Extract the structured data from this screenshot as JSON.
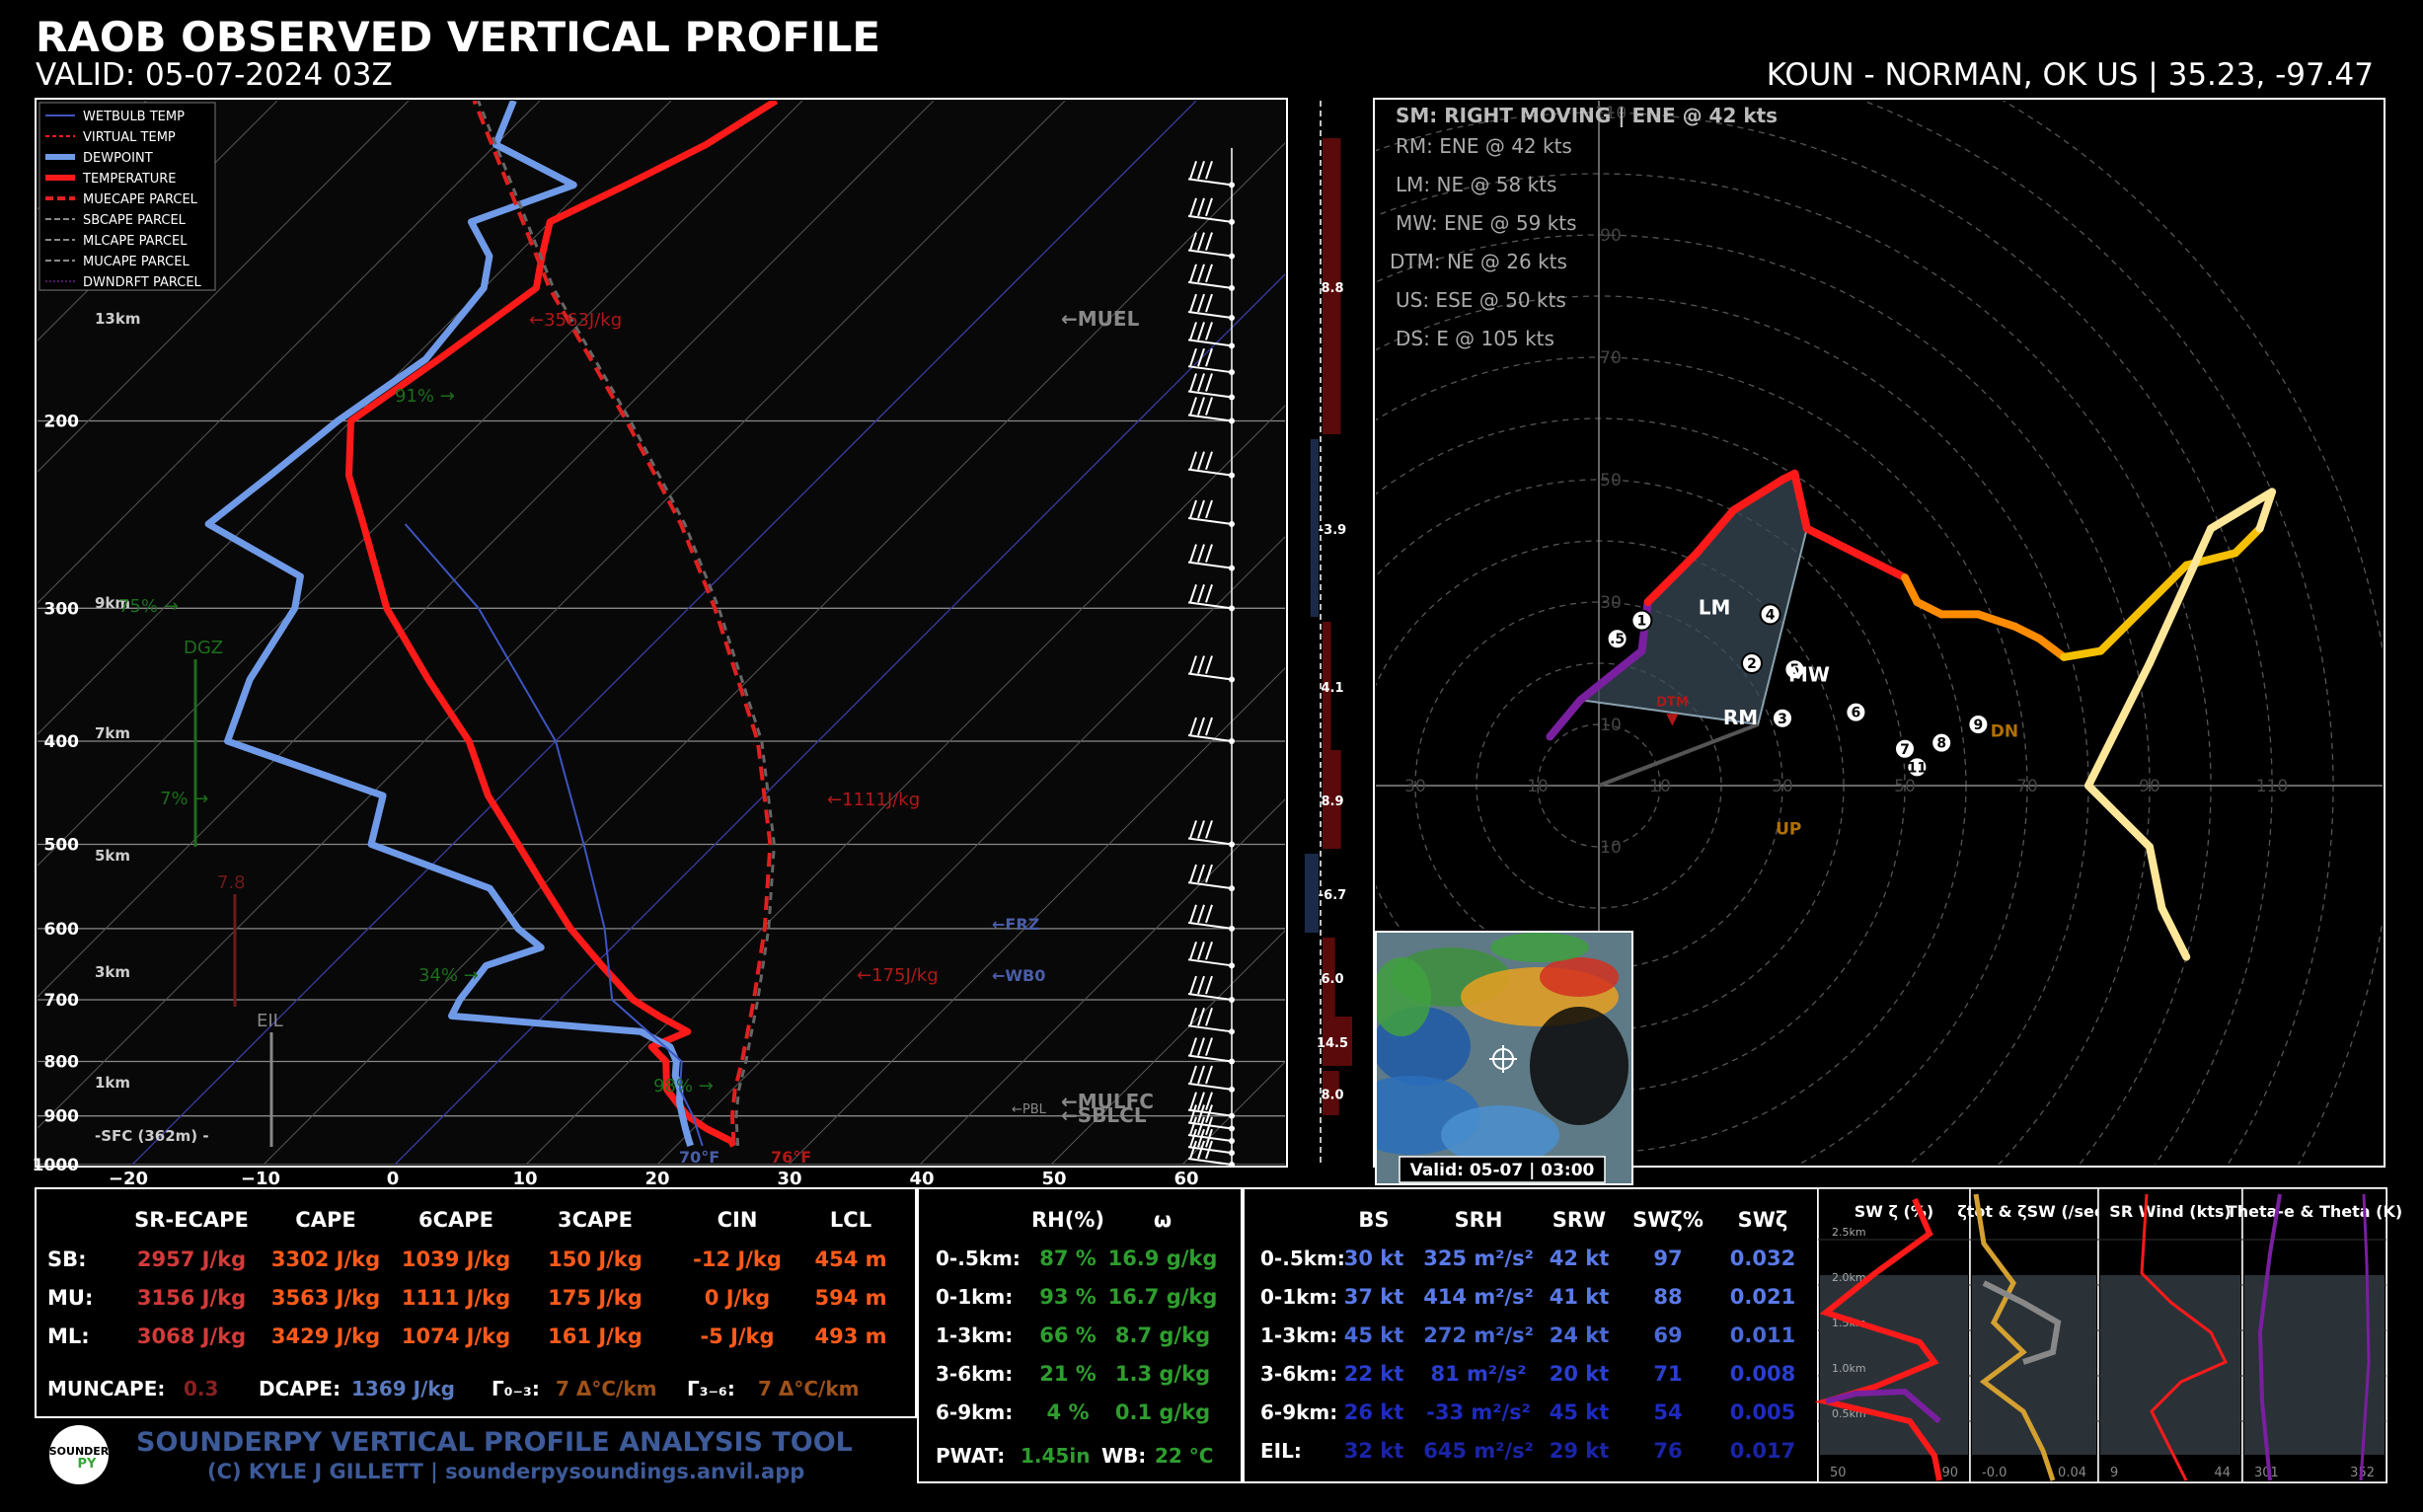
{
  "header": {
    "title": "RAOB OBSERVED VERTICAL PROFILE",
    "valid": "VALID: 05-07-2024 03Z",
    "station": "KOUN - NORMAN, OK US | 35.23, -97.47"
  },
  "skewt": {
    "legend": [
      "WETBULB TEMP",
      "VIRTUAL TEMP",
      "DEWPOINT",
      "TEMPERATURE",
      "MUECAPE PARCEL",
      "SBCAPE PARCEL",
      "MLCAPE PARCEL",
      "MUCAPE PARCEL",
      "DWNDRFT PARCEL"
    ],
    "pressure_ticks": [
      "200",
      "300",
      "400",
      "500",
      "600",
      "700",
      "800",
      "900",
      "1000"
    ],
    "temp_ticks": [
      "−20",
      "−10",
      "0",
      "10",
      "20",
      "30",
      "40",
      "50",
      "60"
    ],
    "height_labels": [
      "13km",
      "9km",
      "7km",
      "5km",
      "3km",
      "1km",
      "-SFC (362m) -"
    ],
    "annotations": {
      "muecape": "←3563J/kg",
      "six_cape": "←1111J/kg",
      "three_cape": "←175J/kg",
      "muel": "←MUEL",
      "frz": "←FRZ",
      "wb0": "←WB0",
      "mulfc": "←MULFC",
      "sblcl": "←SBLCL",
      "pbl": "←PBL",
      "rh_91": "91% →",
      "rh_75": "75% →",
      "rh_7": "7% →",
      "rh_34": "34% →",
      "rh_98": "98% →",
      "dgz": "DGZ",
      "eil": "EIL",
      "lapse": "7.8",
      "sfc_t": "76°F",
      "sfc_td": "70°F"
    },
    "shear_bars": [
      "8.8",
      "-3.9",
      "4.1",
      "8.9",
      "-6.7",
      "6.0",
      "14.5",
      "8.0"
    ]
  },
  "chart_data": {
    "type": "line",
    "title": "RAOB OBSERVED VERTICAL PROFILE",
    "xlabel": "",
    "ylabel": "",
    "xlim": [
      -20,
      60
    ],
    "ylim": [
      1000,
      100
    ],
    "log_y": true,
    "series": [
      {
        "name": "TEMPERATURE",
        "p": [
          960,
          950,
          925,
          900,
          875,
          850,
          800,
          775,
          750,
          725,
          700,
          650,
          600,
          550,
          500,
          450,
          400,
          350,
          300,
          250,
          225,
          200,
          175,
          150,
          140,
          130,
          120,
          110,
          100
        ],
        "t": [
          24.4,
          23.8,
          21.0,
          18.6,
          16.8,
          15.0,
          12.8,
          10.6,
          12.2,
          8.8,
          5.6,
          0.6,
          -4.6,
          -9.6,
          -15.0,
          -21.0,
          -26.6,
          -34.4,
          -43.0,
          -51.2,
          -56.0,
          -60.0,
          -58.0,
          -56.0,
          -58.0,
          -60.0,
          -57.0,
          -54.0,
          -52.0
        ]
      },
      {
        "name": "DEWPOINT",
        "p": [
          960,
          950,
          925,
          900,
          875,
          850,
          825,
          800,
          775,
          750,
          725,
          700,
          650,
          625,
          600,
          550,
          500,
          450,
          400,
          350,
          300,
          280,
          250,
          225,
          200,
          175,
          150,
          140,
          130,
          120,
          110,
          100
        ],
        "t": [
          21.1,
          20.6,
          19.4,
          18.2,
          17.0,
          16.0,
          14.6,
          13.6,
          12.0,
          8.6,
          -7.0,
          -7.6,
          -8.2,
          -5.4,
          -8.6,
          -13.8,
          -26.2,
          -29.0,
          -45.0,
          -48.0,
          -50.0,
          -52.0,
          -63.0,
          -62.0,
          -61.0,
          -59.0,
          -60.0,
          -62.0,
          -66.0,
          -61.0,
          -70.0,
          -72.0
        ]
      },
      {
        "name": "MUECAPE PARCEL",
        "p": [
          960,
          900,
          850,
          800,
          700,
          600,
          500,
          400,
          300,
          250,
          200,
          150,
          120,
          100
        ],
        "t": [
          24.4,
          22.0,
          20.2,
          18.6,
          14.8,
          10.2,
          4.2,
          -4.6,
          -18.0,
          -27.0,
          -39.0,
          -55.0,
          -66.0,
          -75.0
        ]
      },
      {
        "name": "WETBULB TEMP",
        "p": [
          960,
          900,
          850,
          800,
          700,
          600,
          500,
          400,
          300,
          250
        ],
        "t": [
          22.0,
          19.0,
          16.0,
          14.0,
          4.0,
          -2.0,
          -10.0,
          -20.0,
          -36.0,
          -48.0
        ]
      }
    ],
    "barbs_p": [
      1000,
      975,
      950,
      925,
      900,
      850,
      800,
      750,
      700,
      650,
      600,
      550,
      500,
      400,
      350,
      300,
      275,
      250,
      225,
      200,
      190,
      180,
      170,
      160,
      150,
      140,
      130,
      120
    ],
    "grid": true
  },
  "hodograph": {
    "storm_motion": "SM: RIGHT MOVING | ENE @ 42 kts",
    "motions": [
      "RM: ENE @ 42 kts",
      "LM: NE @ 58 kts",
      "MW: ENE @ 59 kts",
      "DTM: NE @ 26 kts",
      "US: ESE @ 50 kts",
      "DS: E @ 105 kts"
    ],
    "ring_labels_x": [
      "30",
      "10",
      "10",
      "30",
      "50",
      "70",
      "90",
      "110"
    ],
    "ring_labels_y": [
      "110",
      "90",
      "70",
      "50",
      "30",
      "10",
      "10"
    ],
    "markers": [
      "LM",
      "MW",
      "RM",
      "DTM",
      "DN",
      "UP"
    ],
    "km_labels": [
      ".5",
      "1",
      "2",
      "3",
      "4",
      "5",
      "6",
      "7",
      "8",
      "9",
      "11"
    ],
    "u_kt": [
      -8,
      -3,
      7,
      8,
      16,
      22,
      30,
      32,
      34,
      42,
      50,
      52,
      56,
      62,
      68,
      72,
      76,
      82,
      90,
      96,
      104,
      108,
      110,
      100,
      90,
      80,
      90,
      92,
      96
    ],
    "v_kt": [
      8,
      14,
      22,
      30,
      38,
      45,
      50,
      51,
      42,
      38,
      34,
      30,
      28,
      28,
      26,
      24,
      21,
      22,
      30,
      36,
      38,
      42,
      48,
      42,
      20,
      0,
      -10,
      -20,
      -28
    ],
    "radar_valid": "Valid: 05-07 | 03:00"
  },
  "table_thermo": {
    "headers": [
      "SR-ECAPE",
      "CAPE",
      "6CAPE",
      "3CAPE",
      "CIN",
      "LCL"
    ],
    "rows": [
      {
        "label": "SB:",
        "vals": [
          "2957 J/kg",
          "3302 J/kg",
          "1039 J/kg",
          "150 J/kg",
          "-12 J/kg",
          "454 m"
        ]
      },
      {
        "label": "MU:",
        "vals": [
          "3156 J/kg",
          "3563 J/kg",
          "1111 J/kg",
          "175 J/kg",
          "0 J/kg",
          "594 m"
        ]
      },
      {
        "label": "ML:",
        "vals": [
          "3068 J/kg",
          "3429 J/kg",
          "1074 J/kg",
          "161 J/kg",
          "-5 J/kg",
          "493 m"
        ]
      }
    ],
    "muncape_label": "MUNCAPE:",
    "muncape": "0.3",
    "dcape_label": "DCAPE:",
    "dcape": "1369 J/kg",
    "g03_label": "Γ₀₋₃:",
    "g03": "7 Δ°C/km",
    "g36_label": "Γ₃₋₆:",
    "g36": "7 Δ°C/km",
    "brand": "SOUNDERPY VERTICAL PROFILE ANALYSIS TOOL",
    "credit": "(C) KYLE J GILLETT | sounderpysoundings.anvil.app",
    "logo_text": "SOUNDER",
    "logo_py": "PY"
  },
  "table_moist": {
    "headers": [
      "RH(%)",
      "ω"
    ],
    "rows": [
      {
        "label": "0-.5km:",
        "vals": [
          "87 %",
          "16.9 g/kg"
        ]
      },
      {
        "label": "0-1km:",
        "vals": [
          "93 %",
          "16.7 g/kg"
        ]
      },
      {
        "label": "1-3km:",
        "vals": [
          "66 %",
          "8.7 g/kg"
        ]
      },
      {
        "label": "3-6km:",
        "vals": [
          "21 %",
          "1.3 g/kg"
        ]
      },
      {
        "label": "6-9km:",
        "vals": [
          "4 %",
          "0.1 g/kg"
        ]
      }
    ],
    "pwat_label": "PWAT:",
    "pwat": "1.45in",
    "wb_label": "WB:",
    "wb": "22 °C"
  },
  "table_kin": {
    "headers": [
      "BS",
      "SRH",
      "SRW",
      "SWζ%",
      "SWζ"
    ],
    "rows": [
      {
        "label": "0-.5km:",
        "vals": [
          "30 kt",
          "325 m²/s²",
          "42 kt",
          "97",
          "0.032"
        ]
      },
      {
        "label": "0-1km:",
        "vals": [
          "37 kt",
          "414 m²/s²",
          "41 kt",
          "88",
          "0.021"
        ]
      },
      {
        "label": "1-3km:",
        "vals": [
          "45 kt",
          "272 m²/s²",
          "24 kt",
          "69",
          "0.011"
        ]
      },
      {
        "label": "3-6km:",
        "vals": [
          "22 kt",
          "81 m²/s²",
          "20 kt",
          "71",
          "0.008"
        ]
      },
      {
        "label": "6-9km:",
        "vals": [
          "26 kt",
          "-33 m²/s²",
          "45 kt",
          "54",
          "0.005"
        ]
      },
      {
        "label": "EIL:",
        "vals": [
          "32 kt",
          "645 m²/s²",
          "29 kt",
          "76",
          "0.017"
        ]
      }
    ]
  },
  "mini_panels": {
    "titles": [
      "SW ζ (%)",
      "ζtot & ζSW (/sec)",
      "SR Wind (kts)",
      "Theta-e & Theta (K)"
    ],
    "y_labels": [
      "2.5km",
      "2.0km",
      "1.5km",
      "1.0km",
      "0.5km"
    ],
    "x_labels": [
      [
        "50",
        "90"
      ],
      [
        "-0.0",
        "0.04"
      ],
      [
        "9",
        "44"
      ],
      [
        "301",
        "352"
      ]
    ]
  },
  "colors": {
    "temp": "#ff1a1a",
    "dew": "#6f9ae8",
    "parcel": "#e02020",
    "grid": "#ffffff",
    "cape_red": "#e03030",
    "ecape": "#d33a3a",
    "orange": "#ff5a1a",
    "green": "#2e9e2e",
    "blue": "#4f74d8",
    "navy": "#2a2ab0",
    "hodo_purple": "#7a1fa0",
    "hodo_red": "#ff1a1a",
    "hodo_orange": "#ff8c00",
    "hodo_yellow": "#f5c000",
    "hodo_cream": "#ffe79a"
  }
}
